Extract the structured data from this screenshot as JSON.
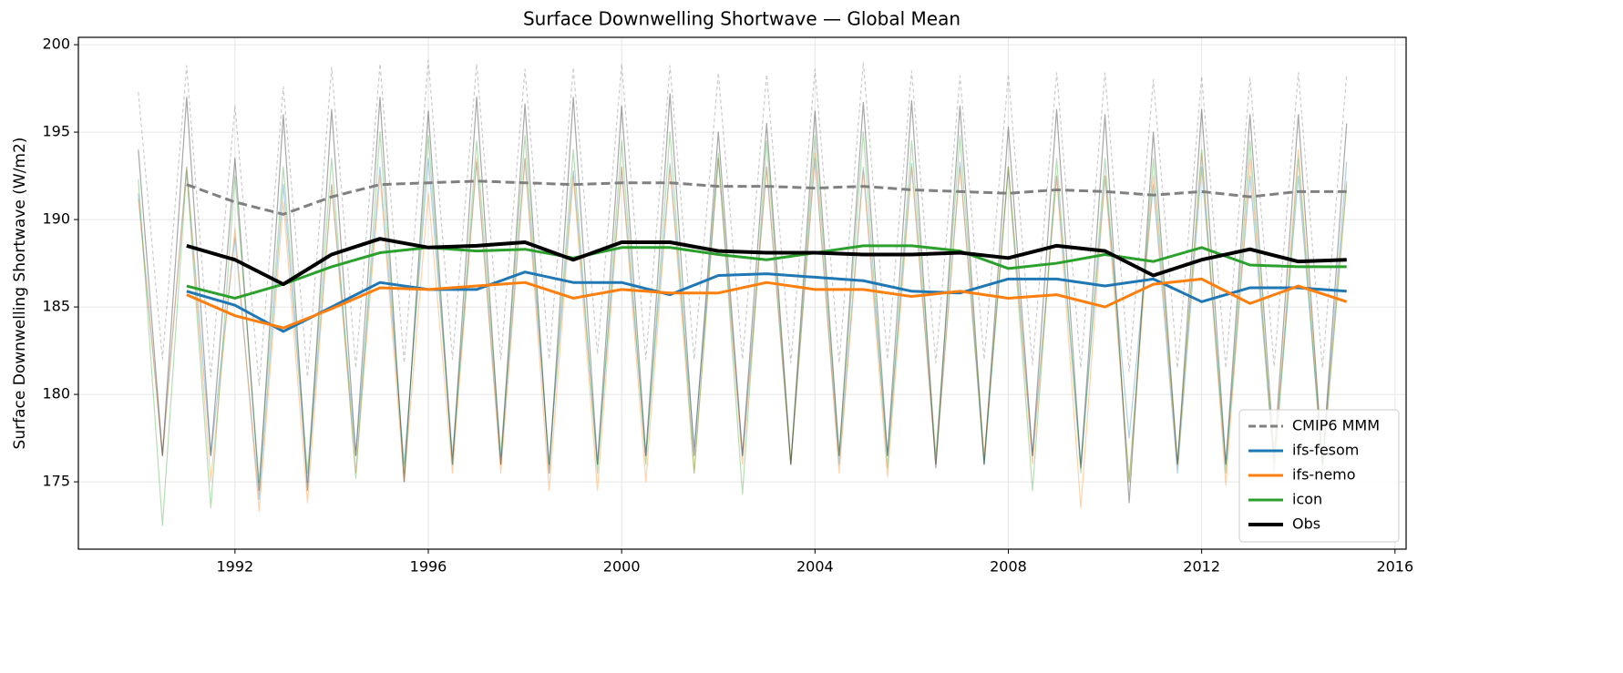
{
  "chart_data": {
    "type": "line",
    "title": "Surface Downwelling Shortwave — Global Mean",
    "ylabel": "Surface Downwelling Shortwave (W/m2)",
    "xlim": [
      1988.76,
      2016.23
    ],
    "xticks": [
      1992,
      1996,
      2000,
      2004,
      2008,
      2012,
      2016
    ],
    "ylim": [
      171.15,
      200.42
    ],
    "yticks": [
      175,
      180,
      185,
      190,
      195,
      200
    ],
    "grid": true,
    "legend": "lower right",
    "x": [
      1991,
      1992,
      1993,
      1994,
      1995,
      1996,
      1997,
      1998,
      1999,
      2000,
      2001,
      2002,
      2003,
      2004,
      2005,
      2006,
      2007,
      2008,
      2009,
      2010,
      2011,
      2012,
      2013,
      2014,
      2015
    ],
    "series": [
      {
        "name": "CMIP6 MMM",
        "color": "#808080",
        "dashed": true,
        "values": [
          192.0,
          191.0,
          190.3,
          191.3,
          192.0,
          192.1,
          192.2,
          192.1,
          192.0,
          192.1,
          192.1,
          191.9,
          191.9,
          191.8,
          191.9,
          191.7,
          191.6,
          191.5,
          191.7,
          191.6,
          191.4,
          191.6,
          191.3,
          191.6,
          191.6
        ]
      },
      {
        "name": "ifs-fesom",
        "color": "#1f77b4",
        "values": [
          185.9,
          185.1,
          183.6,
          185.0,
          186.4,
          186.0,
          186.0,
          187.0,
          186.4,
          186.4,
          185.7,
          186.8,
          186.9,
          186.7,
          186.5,
          185.9,
          185.8,
          186.6,
          186.6,
          186.2,
          186.6,
          185.3,
          186.1,
          186.1,
          185.9
        ]
      },
      {
        "name": "ifs-nemo",
        "color": "#ff7f0e",
        "values": [
          185.7,
          184.5,
          183.8,
          184.9,
          186.1,
          186.0,
          186.2,
          186.4,
          185.5,
          186.0,
          185.8,
          185.8,
          186.4,
          186.0,
          186.0,
          185.6,
          185.9,
          185.5,
          185.7,
          185.0,
          186.3,
          186.6,
          185.2,
          186.2,
          185.3
        ]
      },
      {
        "name": "icon",
        "color": "#2ca02c",
        "values": [
          186.2,
          185.5,
          186.3,
          187.3,
          188.1,
          188.4,
          188.2,
          188.3,
          187.8,
          188.4,
          188.4,
          188.0,
          187.7,
          188.1,
          188.5,
          188.5,
          188.2,
          187.2,
          187.5,
          188.0,
          187.6,
          188.4,
          187.4,
          187.3,
          187.3
        ]
      },
      {
        "name": "Obs",
        "color": "#000000",
        "values": [
          188.5,
          187.7,
          186.3,
          188.0,
          188.9,
          188.4,
          188.5,
          188.7,
          187.7,
          188.7,
          188.7,
          188.2,
          188.1,
          188.1,
          188.0,
          188.0,
          188.1,
          187.8,
          188.5,
          188.2,
          186.8,
          187.7,
          188.3,
          187.6,
          187.7
        ]
      }
    ],
    "x_monthly": [
      1990,
      1990.5,
      1991,
      1991.5,
      1992,
      1992.5,
      1993,
      1993.5,
      1994,
      1994.5,
      1995,
      1995.5,
      1996,
      1996.5,
      1997,
      1997.5,
      1998,
      1998.5,
      1999,
      1999.5,
      2000,
      2000.5,
      2001,
      2001.5,
      2002,
      2002.5,
      2003,
      2003.5,
      2004,
      2004.5,
      2005,
      2005.5,
      2006,
      2006.5,
      2007,
      2007.5,
      2008,
      2008.5,
      2009,
      2009.5,
      2010,
      2010.5,
      2011,
      2011.5,
      2012,
      2012.5,
      2013,
      2013.5,
      2014,
      2014.5,
      2015
    ],
    "monthly_series": [
      {
        "color": "#808080",
        "dashed": true,
        "values": [
          197.3,
          182.0,
          198.8,
          181.0,
          196.5,
          180.5,
          197.6,
          181.0,
          198.7,
          181.5,
          198.9,
          181.8,
          199.1,
          182.0,
          198.9,
          182.0,
          198.6,
          182.0,
          198.7,
          182.3,
          198.9,
          182.0,
          198.8,
          182.0,
          198.4,
          182.0,
          198.3,
          181.8,
          198.6,
          181.8,
          199.0,
          182.0,
          198.5,
          181.8,
          198.2,
          182.0,
          198.3,
          181.7,
          198.4,
          181.5,
          198.4,
          181.3,
          198.0,
          181.5,
          198.2,
          181.5,
          198.1,
          181.6,
          198.4,
          181.5,
          198.3
        ]
      },
      {
        "color": "#1f77b4",
        "values": [
          191.5,
          176.5,
          193.0,
          176.5,
          189.0,
          174.0,
          192.0,
          175.0,
          192.0,
          176.5,
          193.0,
          176.0,
          193.5,
          176.5,
          193.3,
          176.0,
          193.5,
          176.0,
          192.8,
          176.0,
          193.0,
          176.5,
          193.2,
          177.0,
          193.5,
          176.5,
          193.0,
          176.0,
          193.5,
          176.0,
          193.0,
          176.5,
          193.2,
          176.0,
          193.3,
          176.0,
          193.0,
          176.5,
          192.5,
          176.0,
          192.5,
          177.5,
          192.0,
          175.5,
          193.0,
          176.0,
          192.5,
          176.0,
          192.5,
          176.0,
          193.3
        ]
      },
      {
        "color": "#ff7f0e",
        "values": [
          191.2,
          176.5,
          193.0,
          175.0,
          189.5,
          173.3,
          191.0,
          173.8,
          192.0,
          175.5,
          192.5,
          175.0,
          191.5,
          175.5,
          193.5,
          175.5,
          193.5,
          174.5,
          192.5,
          174.5,
          193.0,
          175.0,
          193.0,
          175.5,
          193.5,
          176.0,
          193.0,
          176.0,
          193.8,
          175.5,
          192.8,
          175.3,
          193.0,
          176.0,
          193.0,
          176.5,
          193.0,
          176.0,
          192.5,
          173.5,
          192.5,
          175.0,
          192.5,
          176.0,
          193.8,
          174.8,
          193.5,
          176.0,
          194.0,
          176.0,
          192.0
        ]
      },
      {
        "color": "#2ca02c",
        "values": [
          192.3,
          172.5,
          192.8,
          173.5,
          192.5,
          175.0,
          193.0,
          175.5,
          193.5,
          175.2,
          195.0,
          175.5,
          194.8,
          176.0,
          194.5,
          176.5,
          194.8,
          176.0,
          194.0,
          175.5,
          194.5,
          176.0,
          195.0,
          175.5,
          193.8,
          174.3,
          194.5,
          176.0,
          194.8,
          176.5,
          195.0,
          175.8,
          194.5,
          176.5,
          194.8,
          176.0,
          193.0,
          174.5,
          193.5,
          175.5,
          193.5,
          175.0,
          193.5,
          176.0,
          194.0,
          175.5,
          194.5,
          175.5,
          193.5,
          175.5,
          192.2
        ]
      },
      {
        "color": "#000000",
        "values": [
          194.0,
          176.5,
          197.0,
          176.5,
          193.5,
          174.5,
          196.0,
          174.5,
          196.3,
          176.5,
          197.0,
          175.0,
          196.2,
          176.0,
          197.0,
          176.0,
          196.6,
          175.5,
          197.0,
          176.0,
          196.5,
          176.5,
          197.2,
          176.5,
          195.0,
          176.5,
          195.5,
          176.0,
          196.2,
          176.5,
          196.7,
          176.5,
          196.8,
          175.8,
          196.5,
          176.0,
          195.3,
          176.5,
          196.3,
          175.8,
          196.0,
          173.8,
          195.0,
          176.0,
          196.3,
          176.0,
          196.0,
          176.5,
          196.0,
          176.0,
          195.5
        ]
      }
    ]
  }
}
